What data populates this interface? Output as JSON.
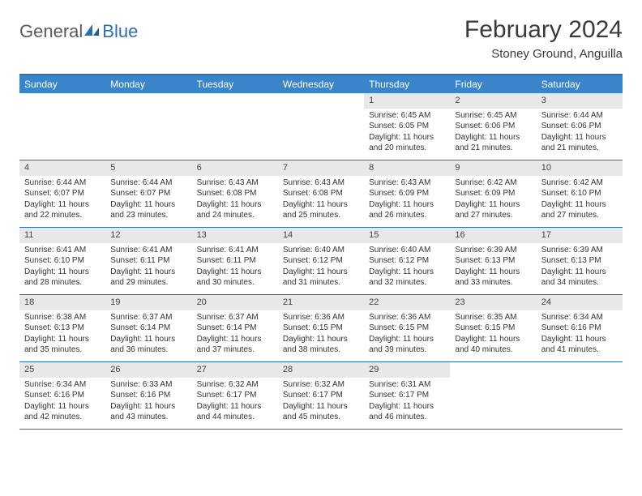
{
  "logo": {
    "text1": "General",
    "text2": "Blue",
    "iconColor": "#2b6fb0"
  },
  "title": "February 2024",
  "location": "Stoney Ground, Anguilla",
  "colors": {
    "headerBar": "#3a85c9",
    "rowBorder": "#2b6fb0",
    "dayNumBg": "#e8e8e8",
    "text": "#333333"
  },
  "weekdays": [
    "Sunday",
    "Monday",
    "Tuesday",
    "Wednesday",
    "Thursday",
    "Friday",
    "Saturday"
  ],
  "weeks": [
    [
      null,
      null,
      null,
      null,
      {
        "n": "1",
        "sr": "Sunrise: 6:45 AM",
        "ss": "Sunset: 6:05 PM",
        "dl1": "Daylight: 11 hours",
        "dl2": "and 20 minutes."
      },
      {
        "n": "2",
        "sr": "Sunrise: 6:45 AM",
        "ss": "Sunset: 6:06 PM",
        "dl1": "Daylight: 11 hours",
        "dl2": "and 21 minutes."
      },
      {
        "n": "3",
        "sr": "Sunrise: 6:44 AM",
        "ss": "Sunset: 6:06 PM",
        "dl1": "Daylight: 11 hours",
        "dl2": "and 21 minutes."
      }
    ],
    [
      {
        "n": "4",
        "sr": "Sunrise: 6:44 AM",
        "ss": "Sunset: 6:07 PM",
        "dl1": "Daylight: 11 hours",
        "dl2": "and 22 minutes."
      },
      {
        "n": "5",
        "sr": "Sunrise: 6:44 AM",
        "ss": "Sunset: 6:07 PM",
        "dl1": "Daylight: 11 hours",
        "dl2": "and 23 minutes."
      },
      {
        "n": "6",
        "sr": "Sunrise: 6:43 AM",
        "ss": "Sunset: 6:08 PM",
        "dl1": "Daylight: 11 hours",
        "dl2": "and 24 minutes."
      },
      {
        "n": "7",
        "sr": "Sunrise: 6:43 AM",
        "ss": "Sunset: 6:08 PM",
        "dl1": "Daylight: 11 hours",
        "dl2": "and 25 minutes."
      },
      {
        "n": "8",
        "sr": "Sunrise: 6:43 AM",
        "ss": "Sunset: 6:09 PM",
        "dl1": "Daylight: 11 hours",
        "dl2": "and 26 minutes."
      },
      {
        "n": "9",
        "sr": "Sunrise: 6:42 AM",
        "ss": "Sunset: 6:09 PM",
        "dl1": "Daylight: 11 hours",
        "dl2": "and 27 minutes."
      },
      {
        "n": "10",
        "sr": "Sunrise: 6:42 AM",
        "ss": "Sunset: 6:10 PM",
        "dl1": "Daylight: 11 hours",
        "dl2": "and 27 minutes."
      }
    ],
    [
      {
        "n": "11",
        "sr": "Sunrise: 6:41 AM",
        "ss": "Sunset: 6:10 PM",
        "dl1": "Daylight: 11 hours",
        "dl2": "and 28 minutes."
      },
      {
        "n": "12",
        "sr": "Sunrise: 6:41 AM",
        "ss": "Sunset: 6:11 PM",
        "dl1": "Daylight: 11 hours",
        "dl2": "and 29 minutes."
      },
      {
        "n": "13",
        "sr": "Sunrise: 6:41 AM",
        "ss": "Sunset: 6:11 PM",
        "dl1": "Daylight: 11 hours",
        "dl2": "and 30 minutes."
      },
      {
        "n": "14",
        "sr": "Sunrise: 6:40 AM",
        "ss": "Sunset: 6:12 PM",
        "dl1": "Daylight: 11 hours",
        "dl2": "and 31 minutes."
      },
      {
        "n": "15",
        "sr": "Sunrise: 6:40 AM",
        "ss": "Sunset: 6:12 PM",
        "dl1": "Daylight: 11 hours",
        "dl2": "and 32 minutes."
      },
      {
        "n": "16",
        "sr": "Sunrise: 6:39 AM",
        "ss": "Sunset: 6:13 PM",
        "dl1": "Daylight: 11 hours",
        "dl2": "and 33 minutes."
      },
      {
        "n": "17",
        "sr": "Sunrise: 6:39 AM",
        "ss": "Sunset: 6:13 PM",
        "dl1": "Daylight: 11 hours",
        "dl2": "and 34 minutes."
      }
    ],
    [
      {
        "n": "18",
        "sr": "Sunrise: 6:38 AM",
        "ss": "Sunset: 6:13 PM",
        "dl1": "Daylight: 11 hours",
        "dl2": "and 35 minutes."
      },
      {
        "n": "19",
        "sr": "Sunrise: 6:37 AM",
        "ss": "Sunset: 6:14 PM",
        "dl1": "Daylight: 11 hours",
        "dl2": "and 36 minutes."
      },
      {
        "n": "20",
        "sr": "Sunrise: 6:37 AM",
        "ss": "Sunset: 6:14 PM",
        "dl1": "Daylight: 11 hours",
        "dl2": "and 37 minutes."
      },
      {
        "n": "21",
        "sr": "Sunrise: 6:36 AM",
        "ss": "Sunset: 6:15 PM",
        "dl1": "Daylight: 11 hours",
        "dl2": "and 38 minutes."
      },
      {
        "n": "22",
        "sr": "Sunrise: 6:36 AM",
        "ss": "Sunset: 6:15 PM",
        "dl1": "Daylight: 11 hours",
        "dl2": "and 39 minutes."
      },
      {
        "n": "23",
        "sr": "Sunrise: 6:35 AM",
        "ss": "Sunset: 6:15 PM",
        "dl1": "Daylight: 11 hours",
        "dl2": "and 40 minutes."
      },
      {
        "n": "24",
        "sr": "Sunrise: 6:34 AM",
        "ss": "Sunset: 6:16 PM",
        "dl1": "Daylight: 11 hours",
        "dl2": "and 41 minutes."
      }
    ],
    [
      {
        "n": "25",
        "sr": "Sunrise: 6:34 AM",
        "ss": "Sunset: 6:16 PM",
        "dl1": "Daylight: 11 hours",
        "dl2": "and 42 minutes."
      },
      {
        "n": "26",
        "sr": "Sunrise: 6:33 AM",
        "ss": "Sunset: 6:16 PM",
        "dl1": "Daylight: 11 hours",
        "dl2": "and 43 minutes."
      },
      {
        "n": "27",
        "sr": "Sunrise: 6:32 AM",
        "ss": "Sunset: 6:17 PM",
        "dl1": "Daylight: 11 hours",
        "dl2": "and 44 minutes."
      },
      {
        "n": "28",
        "sr": "Sunrise: 6:32 AM",
        "ss": "Sunset: 6:17 PM",
        "dl1": "Daylight: 11 hours",
        "dl2": "and 45 minutes."
      },
      {
        "n": "29",
        "sr": "Sunrise: 6:31 AM",
        "ss": "Sunset: 6:17 PM",
        "dl1": "Daylight: 11 hours",
        "dl2": "and 46 minutes."
      },
      null,
      null
    ]
  ]
}
